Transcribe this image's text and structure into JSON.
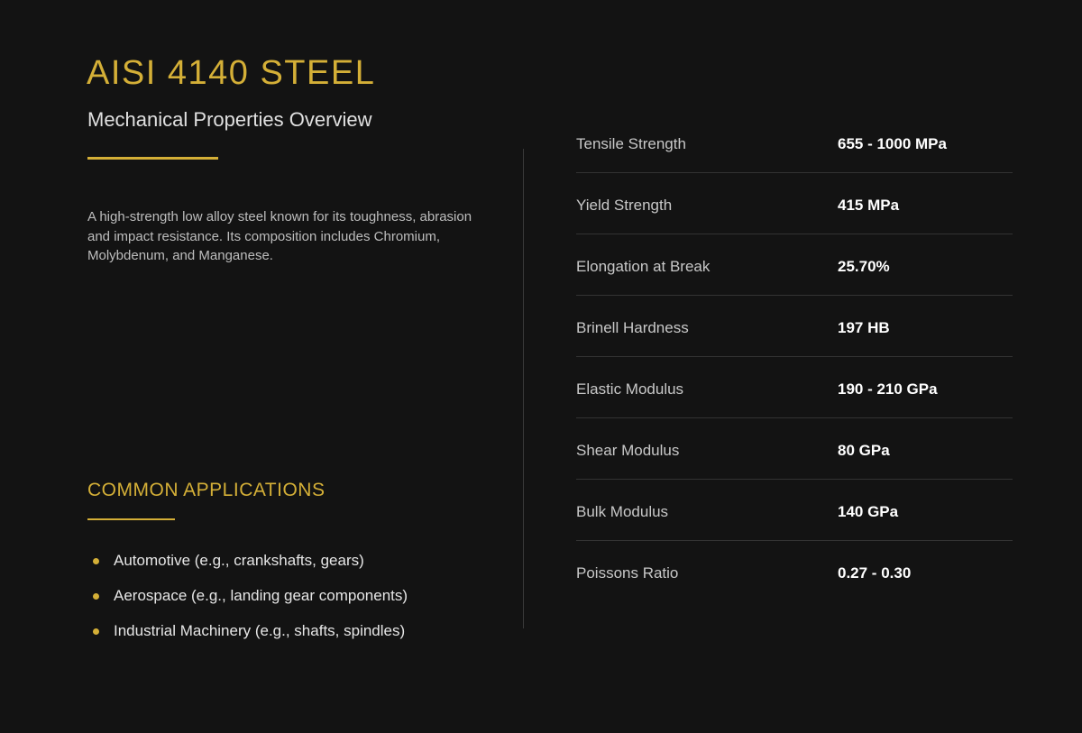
{
  "header": {
    "title": "AISI 4140 STEEL",
    "subtitle": "Mechanical Properties Overview"
  },
  "description": "A high-strength low alloy steel known for its toughness, abrasion and impact resistance. Its composition includes Chromium, Molybdenum, and Manganese.",
  "applications": {
    "title": "COMMON APPLICATIONS",
    "items": [
      "Automotive (e.g., crankshafts, gears)",
      "Aerospace (e.g., landing gear components)",
      "Industrial Machinery (e.g., shafts, spindles)"
    ]
  },
  "properties": [
    [
      "Tensile Strength",
      "655 - 1000 MPa"
    ],
    [
      "Yield Strength",
      "415 MPa"
    ],
    [
      "Elongation at Break",
      "25.70%"
    ],
    [
      "Brinell Hardness",
      "197 HB"
    ],
    [
      "Elastic Modulus",
      "190 - 210 GPa"
    ],
    [
      "Shear Modulus",
      "80 GPa"
    ],
    [
      "Bulk Modulus",
      "140 GPa"
    ],
    [
      "Poissons Ratio",
      "0.27 - 0.30"
    ]
  ]
}
